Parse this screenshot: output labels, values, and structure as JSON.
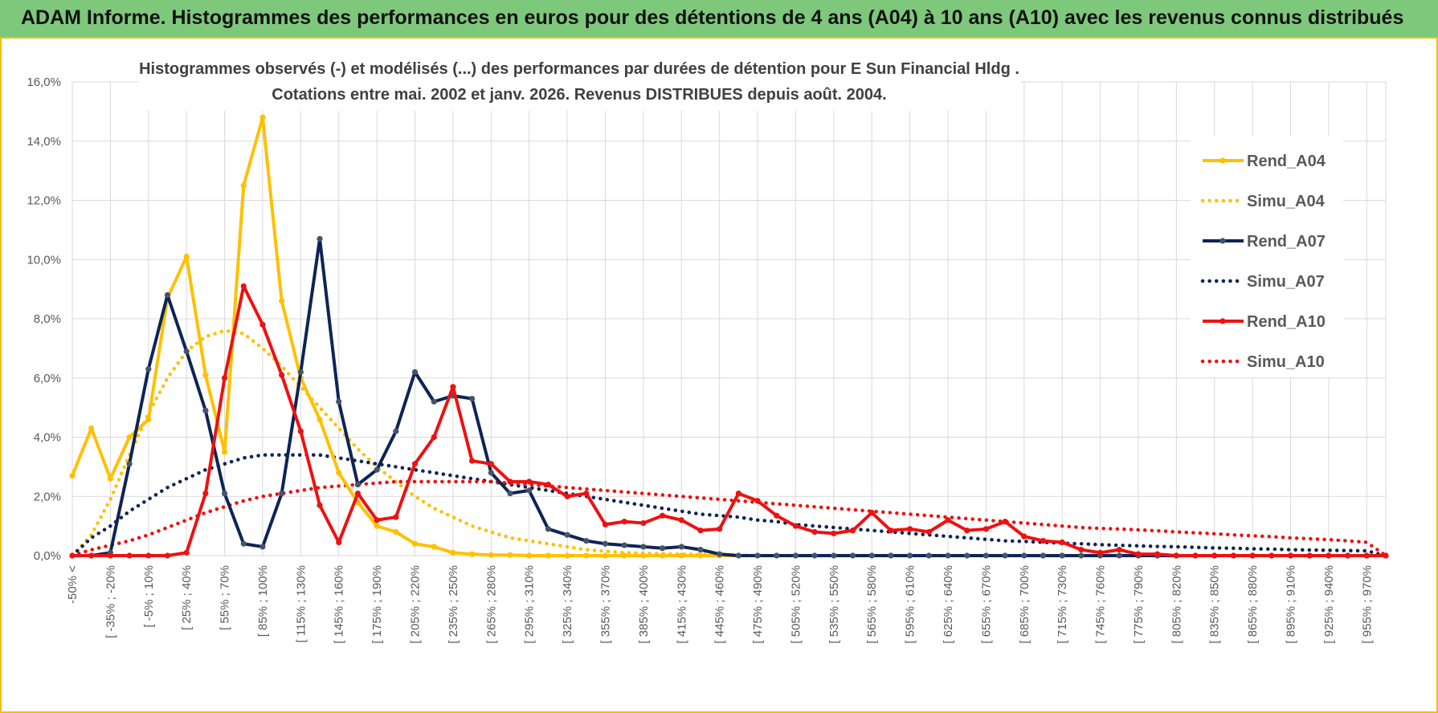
{
  "header": {
    "title": "ADAM Informe. Histogrammes des performances en euros pour des détentions de 4 ans (A04) à 10 ans (A10) avec les revenus connus distribués"
  },
  "colors": {
    "yellow": "#ffc000",
    "navy": "#0d2456",
    "red": "#ee1111",
    "grid": "#d9d9d9",
    "banner": "#7ec87c",
    "frame": "#f0c000"
  },
  "chart_data": {
    "type": "line",
    "title_line1": "Histogrammes observés (-) et modélisés (...) des performances par durées de détention pour E Sun Financial Hldg .",
    "title_line2": "Cotations entre mai. 2002 et janv. 2026. Revenus DISTRIBUES depuis août. 2004.",
    "xlabel": "",
    "ylabel": "",
    "ylim": [
      0,
      16
    ],
    "yticks": [
      "0,0%",
      "2,0%",
      "4,0%",
      "6,0%",
      "8,0%",
      "10,0%",
      "12,0%",
      "14,0%",
      "16,0%"
    ],
    "grid": true,
    "legend_position": "right",
    "category_labels": [
      "-50% <",
      "[ -35% ; -20%",
      "[ -5% ; 10%",
      "[ 25% ; 40%",
      "[ 55% ; 70%",
      "[ 85% ; 100%",
      "[ 115% ; 130%",
      "[ 145% ; 160%",
      "[ 175% ; 190%",
      "[ 205% ; 220%",
      "[ 235% ; 250%",
      "[ 265% ; 280%",
      "[ 295% ; 310%",
      "[ 325% ; 340%",
      "[ 355% ; 370%",
      "[ 385% ; 400%",
      "[ 415% ; 430%",
      "[ 445% ; 460%",
      "[ 475% ; 490%",
      "[ 505% ; 520%",
      "[ 535% ; 550%",
      "[ 565% ; 580%",
      "[ 595% ; 610%",
      "[ 625% ; 640%",
      "[ 655% ; 670%",
      "[ 685% ; 700%",
      "[ 715% ; 730%",
      "[ 745% ; 760%",
      "[ 775% ; 790%",
      "[ 805% ; 820%",
      "[ 835% ; 850%",
      "[ 865% ; 880%",
      "[ 895% ; 910%",
      "[ 925% ; 940%",
      "[ 955% ; 970%"
    ],
    "n_points": 70,
    "series": [
      {
        "name": "Rend_A04",
        "style": "solid",
        "color": "#ffc000",
        "values": [
          2.7,
          4.3,
          2.6,
          4.0,
          4.6,
          8.7,
          10.1,
          6.1,
          3.5,
          12.5,
          14.8,
          8.6,
          6.0,
          4.6,
          2.8,
          1.8,
          1.0,
          0.8,
          0.4,
          0.3,
          0.1,
          0.05,
          0.02,
          0.02,
          0,
          0,
          0,
          0,
          0,
          0,
          0,
          0,
          0,
          0,
          0,
          0,
          0,
          0,
          0,
          0,
          0,
          0,
          0,
          0,
          0,
          0,
          0,
          0,
          0,
          0,
          0,
          0,
          0,
          0,
          0,
          0,
          0,
          0,
          0,
          0,
          0,
          0,
          0,
          0,
          0,
          0,
          0,
          0,
          0,
          0
        ]
      },
      {
        "name": "Simu_A04",
        "style": "dotted",
        "color": "#ffc000",
        "values": [
          0.0,
          0.7,
          1.9,
          3.4,
          4.8,
          6.0,
          6.9,
          7.4,
          7.6,
          7.5,
          7.0,
          6.4,
          5.7,
          5.0,
          4.3,
          3.6,
          3.0,
          2.5,
          2.0,
          1.6,
          1.3,
          1.0,
          0.8,
          0.6,
          0.5,
          0.4,
          0.3,
          0.2,
          0.15,
          0.1,
          0.08,
          0.06,
          0.05,
          0.04,
          0.03,
          0.02,
          0,
          0,
          0,
          0,
          0,
          0,
          0,
          0,
          0,
          0,
          0,
          0,
          0,
          0,
          0,
          0,
          0,
          0,
          0,
          0,
          0,
          0,
          0,
          0,
          0,
          0,
          0,
          0,
          0,
          0,
          0,
          0,
          0,
          0
        ]
      },
      {
        "name": "Rend_A07",
        "style": "solid",
        "color": "#0d2456",
        "values": [
          0,
          0,
          0.1,
          3.1,
          6.3,
          8.8,
          6.9,
          4.9,
          2.1,
          0.4,
          0.3,
          2.1,
          6.2,
          10.7,
          5.2,
          2.4,
          2.9,
          4.2,
          6.2,
          5.2,
          5.4,
          5.3,
          2.8,
          2.1,
          2.2,
          0.9,
          0.7,
          0.5,
          0.4,
          0.35,
          0.3,
          0.25,
          0.3,
          0.2,
          0.05,
          0,
          0,
          0,
          0,
          0,
          0,
          0,
          0,
          0,
          0,
          0,
          0,
          0,
          0,
          0,
          0,
          0,
          0,
          0,
          0,
          0,
          0,
          0,
          0,
          0,
          0,
          0,
          0,
          0,
          0,
          0,
          0,
          0,
          0,
          0
        ]
      },
      {
        "name": "Simu_A07",
        "style": "dotted",
        "color": "#0d2456",
        "values": [
          0,
          0.6,
          1.0,
          1.5,
          1.9,
          2.3,
          2.6,
          2.9,
          3.1,
          3.3,
          3.4,
          3.4,
          3.4,
          3.4,
          3.3,
          3.2,
          3.1,
          3.0,
          2.9,
          2.8,
          2.7,
          2.6,
          2.5,
          2.4,
          2.3,
          2.2,
          2.1,
          2.0,
          1.9,
          1.8,
          1.7,
          1.6,
          1.5,
          1.4,
          1.35,
          1.3,
          1.2,
          1.15,
          1.05,
          1.0,
          0.95,
          0.9,
          0.85,
          0.8,
          0.75,
          0.7,
          0.65,
          0.6,
          0.55,
          0.5,
          0.48,
          0.45,
          0.42,
          0.4,
          0.37,
          0.35,
          0.33,
          0.31,
          0.3,
          0.28,
          0.26,
          0.25,
          0.23,
          0.22,
          0.2,
          0.19,
          0.18,
          0.17,
          0.16,
          0
        ]
      },
      {
        "name": "Rend_A10",
        "style": "solid",
        "color": "#ee1111",
        "values": [
          0,
          0,
          0,
          0,
          0,
          0,
          0.1,
          2.1,
          6.0,
          9.1,
          7.8,
          6.1,
          4.2,
          1.7,
          0.45,
          2.1,
          1.2,
          1.3,
          3.1,
          4.0,
          5.7,
          3.2,
          3.1,
          2.5,
          2.5,
          2.4,
          2.0,
          2.1,
          1.05,
          1.15,
          1.1,
          1.35,
          1.2,
          0.85,
          0.9,
          2.1,
          1.85,
          1.35,
          1.0,
          0.8,
          0.75,
          0.85,
          1.45,
          0.85,
          0.9,
          0.8,
          1.2,
          0.85,
          0.9,
          1.15,
          0.65,
          0.5,
          0.45,
          0.2,
          0.1,
          0.2,
          0.05,
          0.05,
          0,
          0,
          0,
          0,
          0,
          0,
          0,
          0,
          0,
          0,
          0,
          0
        ]
      },
      {
        "name": "Simu_A10",
        "style": "dotted",
        "color": "#ee1111",
        "values": [
          0,
          0.2,
          0.35,
          0.5,
          0.7,
          0.95,
          1.2,
          1.45,
          1.65,
          1.85,
          2.0,
          2.1,
          2.2,
          2.3,
          2.35,
          2.4,
          2.45,
          2.5,
          2.5,
          2.5,
          2.5,
          2.5,
          2.5,
          2.45,
          2.4,
          2.35,
          2.3,
          2.25,
          2.2,
          2.15,
          2.1,
          2.05,
          2.0,
          1.95,
          1.9,
          1.85,
          1.8,
          1.75,
          1.7,
          1.65,
          1.6,
          1.55,
          1.5,
          1.45,
          1.4,
          1.35,
          1.3,
          1.25,
          1.2,
          1.15,
          1.1,
          1.05,
          1.0,
          0.95,
          0.92,
          0.9,
          0.87,
          0.84,
          0.8,
          0.77,
          0.74,
          0.7,
          0.67,
          0.64,
          0.6,
          0.57,
          0.54,
          0.5,
          0.45,
          0
        ]
      }
    ]
  }
}
